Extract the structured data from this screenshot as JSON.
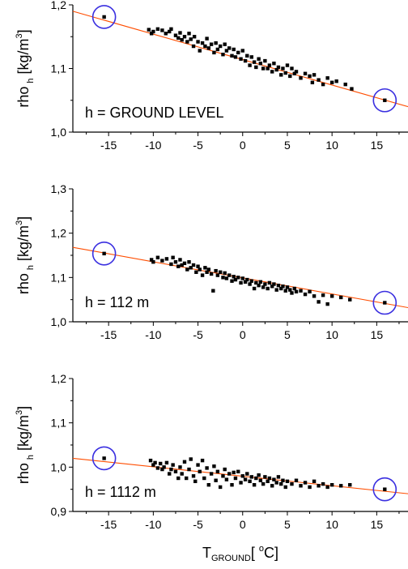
{
  "chart_data": [
    {
      "type": "scatter",
      "panel_label": "h = GROUND LEVEL",
      "ylabel": {
        "main": "rho",
        "sub": "h",
        "unit_before": " [kg/m",
        "unit_sup": "3",
        "unit_after": "]"
      },
      "xlim": [
        -19,
        18.5
      ],
      "ylim": [
        1.0,
        1.2
      ],
      "yticks": [
        1.0,
        1.1,
        1.2
      ],
      "ytick_labels": [
        "1,0",
        "1,1",
        "1,2"
      ],
      "xticks": [
        -15,
        -10,
        -5,
        0,
        5,
        10,
        15
      ],
      "xtick_labels": [
        "-15",
        "-10",
        "-5",
        "0",
        "5",
        "10",
        "15"
      ],
      "fit_line": {
        "x": [
          -19,
          18.5
        ],
        "y": [
          1.19,
          1.04
        ],
        "color": "#ff4d00"
      },
      "circled_points": [
        {
          "x": -15.5,
          "y": 1.181
        },
        {
          "x": 15.9,
          "y": 1.05
        }
      ],
      "circle_color": "#3a2fe0",
      "points": [
        [
          -15.5,
          1.181
        ],
        [
          -10.5,
          1.161
        ],
        [
          -10.2,
          1.155
        ],
        [
          -10.0,
          1.158
        ],
        [
          -9.5,
          1.162
        ],
        [
          -9.0,
          1.16
        ],
        [
          -8.6,
          1.155
        ],
        [
          -8.2,
          1.158
        ],
        [
          -8.0,
          1.162
        ],
        [
          -7.5,
          1.152
        ],
        [
          -7.2,
          1.148
        ],
        [
          -7.0,
          1.156
        ],
        [
          -6.8,
          1.145
        ],
        [
          -6.5,
          1.15
        ],
        [
          -6.2,
          1.142
        ],
        [
          -6.0,
          1.155
        ],
        [
          -5.8,
          1.146
        ],
        [
          -5.5,
          1.135
        ],
        [
          -5.4,
          1.15
        ],
        [
          -5.0,
          1.142
        ],
        [
          -4.8,
          1.128
        ],
        [
          -4.5,
          1.14
        ],
        [
          -4.2,
          1.135
        ],
        [
          -4.0,
          1.147
        ],
        [
          -3.8,
          1.132
        ],
        [
          -3.5,
          1.138
        ],
        [
          -3.2,
          1.125
        ],
        [
          -3.0,
          1.14
        ],
        [
          -2.8,
          1.13
        ],
        [
          -2.5,
          1.135
        ],
        [
          -2.2,
          1.122
        ],
        [
          -2.0,
          1.138
        ],
        [
          -1.8,
          1.128
        ],
        [
          -1.5,
          1.132
        ],
        [
          -1.2,
          1.12
        ],
        [
          -1.0,
          1.13
        ],
        [
          -0.8,
          1.118
        ],
        [
          -0.5,
          1.125
        ],
        [
          -0.2,
          1.115
        ],
        [
          0.0,
          1.128
        ],
        [
          0.3,
          1.112
        ],
        [
          0.5,
          1.12
        ],
        [
          0.8,
          1.105
        ],
        [
          1.0,
          1.118
        ],
        [
          1.3,
          1.11
        ],
        [
          1.5,
          1.102
        ],
        [
          1.8,
          1.115
        ],
        [
          2.0,
          1.108
        ],
        [
          2.3,
          1.1
        ],
        [
          2.5,
          1.112
        ],
        [
          2.8,
          1.1
        ],
        [
          3.0,
          1.105
        ],
        [
          3.3,
          1.095
        ],
        [
          3.5,
          1.108
        ],
        [
          3.8,
          1.098
        ],
        [
          4.0,
          1.102
        ],
        [
          4.3,
          1.09
        ],
        [
          4.5,
          1.1
        ],
        [
          4.8,
          1.093
        ],
        [
          5.0,
          1.105
        ],
        [
          5.3,
          1.088
        ],
        [
          5.5,
          1.1
        ],
        [
          5.8,
          1.092
        ],
        [
          6.0,
          1.095
        ],
        [
          6.5,
          1.085
        ],
        [
          7.0,
          1.092
        ],
        [
          7.5,
          1.088
        ],
        [
          7.8,
          1.078
        ],
        [
          8.0,
          1.09
        ],
        [
          8.5,
          1.082
        ],
        [
          9.0,
          1.075
        ],
        [
          9.5,
          1.085
        ],
        [
          10.0,
          1.078
        ],
        [
          10.5,
          1.08
        ],
        [
          11.5,
          1.075
        ],
        [
          12.2,
          1.068
        ],
        [
          15.9,
          1.05
        ]
      ]
    },
    {
      "type": "scatter",
      "panel_label": "h = 112 m",
      "ylabel": {
        "main": "rho",
        "sub": "h",
        "unit_before": " [kg/m",
        "unit_sup": "3",
        "unit_after": "]"
      },
      "xlim": [
        -19,
        18.5
      ],
      "ylim": [
        1.0,
        1.3
      ],
      "yticks": [
        1.0,
        1.1,
        1.2,
        1.3
      ],
      "ytick_labels": [
        "1,0",
        "1,1",
        "1,2",
        "1,3"
      ],
      "xticks": [
        -15,
        -10,
        -5,
        0,
        5,
        10,
        15
      ],
      "xtick_labels": [
        "-15",
        "-10",
        "-5",
        "0",
        "5",
        "10",
        "15"
      ],
      "fit_line": {
        "x": [
          -19,
          18.5
        ],
        "y": [
          1.168,
          1.032
        ],
        "color": "#ff4d00"
      },
      "circled_points": [
        {
          "x": -15.5,
          "y": 1.154
        },
        {
          "x": 15.9,
          "y": 1.043
        }
      ],
      "circle_color": "#3a2fe0",
      "points": [
        [
          -15.5,
          1.154
        ],
        [
          -10.2,
          1.14
        ],
        [
          -10.0,
          1.135
        ],
        [
          -9.5,
          1.145
        ],
        [
          -9.0,
          1.138
        ],
        [
          -8.5,
          1.142
        ],
        [
          -8.0,
          1.13
        ],
        [
          -7.8,
          1.145
        ],
        [
          -7.5,
          1.135
        ],
        [
          -7.2,
          1.125
        ],
        [
          -7.0,
          1.14
        ],
        [
          -6.8,
          1.128
        ],
        [
          -6.5,
          1.132
        ],
        [
          -6.2,
          1.118
        ],
        [
          -6.0,
          1.135
        ],
        [
          -5.8,
          1.122
        ],
        [
          -5.5,
          1.128
        ],
        [
          -5.2,
          1.112
        ],
        [
          -5.0,
          1.125
        ],
        [
          -4.8,
          1.118
        ],
        [
          -4.5,
          1.105
        ],
        [
          -4.2,
          1.122
        ],
        [
          -4.0,
          1.112
        ],
        [
          -3.8,
          1.118
        ],
        [
          -3.5,
          1.108
        ],
        [
          -3.3,
          1.07
        ],
        [
          -3.0,
          1.115
        ],
        [
          -2.8,
          1.105
        ],
        [
          -2.5,
          1.112
        ],
        [
          -2.2,
          1.1
        ],
        [
          -2.0,
          1.11
        ],
        [
          -1.8,
          1.098
        ],
        [
          -1.5,
          1.105
        ],
        [
          -1.2,
          1.092
        ],
        [
          -1.0,
          1.102
        ],
        [
          -0.8,
          1.095
        ],
        [
          -0.5,
          1.1
        ],
        [
          -0.2,
          1.088
        ],
        [
          0.0,
          1.098
        ],
        [
          0.3,
          1.09
        ],
        [
          0.5,
          1.095
        ],
        [
          0.8,
          1.085
        ],
        [
          1.0,
          1.092
        ],
        [
          1.3,
          1.075
        ],
        [
          1.5,
          1.088
        ],
        [
          1.8,
          1.082
        ],
        [
          2.0,
          1.09
        ],
        [
          2.3,
          1.078
        ],
        [
          2.5,
          1.085
        ],
        [
          2.8,
          1.075
        ],
        [
          3.0,
          1.088
        ],
        [
          3.3,
          1.08
        ],
        [
          3.5,
          1.085
        ],
        [
          3.8,
          1.072
        ],
        [
          4.0,
          1.082
        ],
        [
          4.3,
          1.075
        ],
        [
          4.5,
          1.08
        ],
        [
          4.8,
          1.07
        ],
        [
          5.0,
          1.078
        ],
        [
          5.3,
          1.072
        ],
        [
          5.5,
          1.065
        ],
        [
          5.8,
          1.075
        ],
        [
          6.0,
          1.068
        ],
        [
          6.5,
          1.07
        ],
        [
          7.0,
          1.062
        ],
        [
          7.5,
          1.068
        ],
        [
          8.0,
          1.058
        ],
        [
          8.5,
          1.045
        ],
        [
          9.0,
          1.06
        ],
        [
          9.5,
          1.04
        ],
        [
          10.0,
          1.058
        ],
        [
          11.0,
          1.055
        ],
        [
          12.0,
          1.05
        ],
        [
          15.9,
          1.043
        ]
      ]
    },
    {
      "type": "scatter",
      "panel_label": "h = 1112 m",
      "ylabel": {
        "main": "rho",
        "sub": "h",
        "unit_before": " [kg/m",
        "unit_sup": "3",
        "unit_after": "]"
      },
      "xlabel": {
        "main": "T",
        "sub": "GROUND",
        "unit_before": "[ ",
        "unit_sup": "o",
        "unit_after": "C]"
      },
      "xlim": [
        -19,
        18.5
      ],
      "ylim": [
        0.9,
        1.2
      ],
      "yticks": [
        0.9,
        1.0,
        1.1,
        1.2
      ],
      "ytick_labels": [
        "0,9",
        "1,0",
        "1,1",
        "1,2"
      ],
      "xticks": [
        -15,
        -10,
        -5,
        0,
        5,
        10,
        15
      ],
      "xtick_labels": [
        "-15",
        "-10",
        "-5",
        "0",
        "5",
        "10",
        "15"
      ],
      "fit_line": {
        "x": [
          -19,
          18.5
        ],
        "y": [
          1.02,
          0.94
        ],
        "color": "#ff4d00"
      },
      "circled_points": [
        {
          "x": -15.5,
          "y": 1.02
        },
        {
          "x": 15.9,
          "y": 0.95
        }
      ],
      "circle_color": "#3a2fe0",
      "points": [
        [
          -15.5,
          1.02
        ],
        [
          -10.3,
          1.015
        ],
        [
          -10.0,
          1.005
        ],
        [
          -9.8,
          1.01
        ],
        [
          -9.5,
          0.998
        ],
        [
          -9.2,
          1.008
        ],
        [
          -9.0,
          0.995
        ],
        [
          -8.8,
          1.0
        ],
        [
          -8.5,
          1.01
        ],
        [
          -8.2,
          0.985
        ],
        [
          -8.0,
          0.995
        ],
        [
          -7.8,
          1.005
        ],
        [
          -7.5,
          0.99
        ],
        [
          -7.2,
          0.975
        ],
        [
          -7.0,
          1.0
        ],
        [
          -6.8,
          0.985
        ],
        [
          -6.5,
          1.012
        ],
        [
          -6.3,
          0.975
        ],
        [
          -6.0,
          0.995
        ],
        [
          -5.8,
          1.018
        ],
        [
          -5.5,
          0.98
        ],
        [
          -5.3,
          0.968
        ],
        [
          -5.0,
          1.005
        ],
        [
          -4.8,
          0.99
        ],
        [
          -4.5,
          1.015
        ],
        [
          -4.3,
          0.975
        ],
        [
          -4.0,
          0.998
        ],
        [
          -3.8,
          0.96
        ],
        [
          -3.5,
          0.985
        ],
        [
          -3.2,
          1.002
        ],
        [
          -3.0,
          0.97
        ],
        [
          -2.8,
          0.99
        ],
        [
          -2.5,
          0.955
        ],
        [
          -2.2,
          0.98
        ],
        [
          -2.0,
          0.995
        ],
        [
          -1.8,
          0.972
        ],
        [
          -1.5,
          0.985
        ],
        [
          -1.2,
          0.96
        ],
        [
          -1.0,
          0.988
        ],
        [
          -0.8,
          0.975
        ],
        [
          -0.5,
          0.99
        ],
        [
          -0.2,
          0.965
        ],
        [
          0.0,
          0.98
        ],
        [
          0.3,
          0.972
        ],
        [
          0.5,
          0.985
        ],
        [
          0.8,
          0.968
        ],
        [
          1.0,
          0.978
        ],
        [
          1.3,
          0.96
        ],
        [
          1.5,
          0.975
        ],
        [
          1.8,
          0.982
        ],
        [
          2.0,
          0.97
        ],
        [
          2.3,
          0.962
        ],
        [
          2.5,
          0.978
        ],
        [
          2.8,
          0.968
        ],
        [
          3.0,
          0.975
        ],
        [
          3.3,
          0.958
        ],
        [
          3.5,
          0.972
        ],
        [
          3.8,
          0.965
        ],
        [
          4.0,
          0.978
        ],
        [
          4.3,
          0.962
        ],
        [
          4.5,
          0.97
        ],
        [
          4.8,
          0.955
        ],
        [
          5.0,
          0.968
        ],
        [
          5.5,
          0.962
        ],
        [
          6.0,
          0.97
        ],
        [
          6.5,
          0.958
        ],
        [
          7.0,
          0.965
        ],
        [
          7.5,
          0.955
        ],
        [
          8.0,
          0.968
        ],
        [
          8.5,
          0.958
        ],
        [
          9.0,
          0.962
        ],
        [
          9.5,
          0.955
        ],
        [
          10.0,
          0.96
        ],
        [
          11.0,
          0.958
        ],
        [
          12.0,
          0.96
        ],
        [
          15.9,
          0.95
        ]
      ]
    }
  ]
}
